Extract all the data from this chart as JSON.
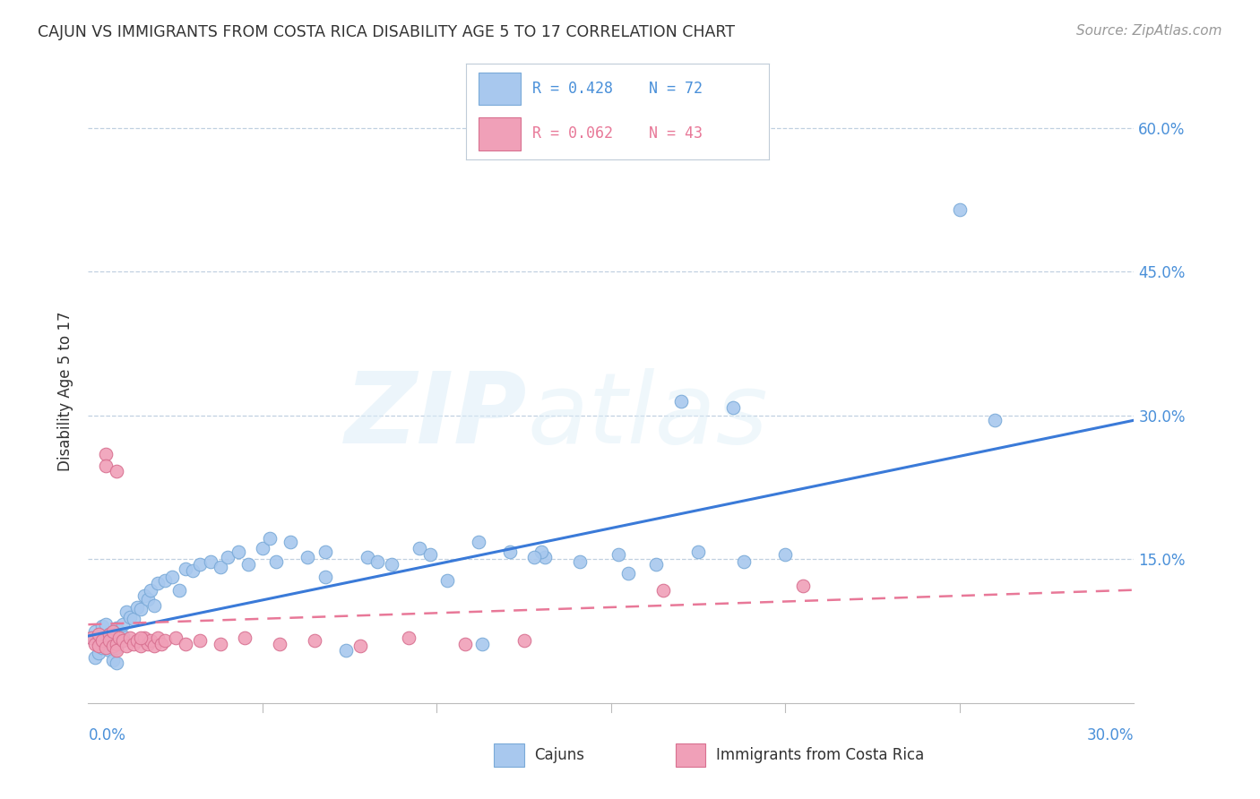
{
  "title": "CAJUN VS IMMIGRANTS FROM COSTA RICA DISABILITY AGE 5 TO 17 CORRELATION CHART",
  "source_text": "Source: ZipAtlas.com",
  "ylabel": "Disability Age 5 to 17",
  "xlim": [
    0.0,
    0.3
  ],
  "ylim": [
    0.0,
    0.65
  ],
  "yticks": [
    0.15,
    0.3,
    0.45,
    0.6
  ],
  "ytick_labels": [
    "15.0%",
    "30.0%",
    "45.0%",
    "60.0%"
  ],
  "cajun_color": "#a8c8ee",
  "cajun_edge_color": "#7aaad8",
  "costa_rica_color": "#f0a0b8",
  "costa_rica_edge_color": "#d87090",
  "trend_cajun_color": "#3a7ad8",
  "trend_costa_rica_color": "#e87898",
  "legend_label_cajun": "Cajuns",
  "legend_label_costa_rica": "Immigrants from Costa Rica",
  "R_cajun": 0.428,
  "N_cajun": 72,
  "R_costa_rica": 0.062,
  "N_costa_rica": 43,
  "background_color": "#ffffff",
  "grid_color": "#c0d0e0",
  "axis_color": "#4a90d9",
  "trend_cajun_start_y": 0.07,
  "trend_cajun_end_y": 0.295,
  "trend_cr_start_y": 0.082,
  "trend_cr_end_y": 0.118,
  "cajun_x": [
    0.001,
    0.002,
    0.002,
    0.003,
    0.003,
    0.004,
    0.004,
    0.005,
    0.005,
    0.006,
    0.006,
    0.007,
    0.007,
    0.008,
    0.008,
    0.008,
    0.009,
    0.009,
    0.01,
    0.01,
    0.011,
    0.012,
    0.013,
    0.014,
    0.015,
    0.016,
    0.017,
    0.018,
    0.019,
    0.02,
    0.022,
    0.024,
    0.026,
    0.028,
    0.03,
    0.032,
    0.035,
    0.038,
    0.04,
    0.043,
    0.046,
    0.05,
    0.054,
    0.058,
    0.063,
    0.068,
    0.074,
    0.08,
    0.087,
    0.095,
    0.103,
    0.112,
    0.121,
    0.131,
    0.141,
    0.152,
    0.163,
    0.175,
    0.188,
    0.2,
    0.13,
    0.155,
    0.17,
    0.185,
    0.052,
    0.068,
    0.083,
    0.098,
    0.113,
    0.128,
    0.25,
    0.26
  ],
  "cajun_y": [
    0.068,
    0.075,
    0.048,
    0.065,
    0.052,
    0.08,
    0.058,
    0.082,
    0.062,
    0.072,
    0.055,
    0.068,
    0.045,
    0.078,
    0.058,
    0.042,
    0.065,
    0.075,
    0.07,
    0.082,
    0.095,
    0.09,
    0.088,
    0.1,
    0.098,
    0.112,
    0.108,
    0.118,
    0.102,
    0.125,
    0.128,
    0.132,
    0.118,
    0.14,
    0.138,
    0.145,
    0.148,
    0.142,
    0.152,
    0.158,
    0.145,
    0.162,
    0.148,
    0.168,
    0.152,
    0.158,
    0.055,
    0.152,
    0.145,
    0.162,
    0.128,
    0.168,
    0.158,
    0.152,
    0.148,
    0.155,
    0.145,
    0.158,
    0.148,
    0.155,
    0.158,
    0.135,
    0.315,
    0.308,
    0.172,
    0.132,
    0.148,
    0.155,
    0.062,
    0.152,
    0.515,
    0.295
  ],
  "costa_rica_x": [
    0.001,
    0.002,
    0.003,
    0.003,
    0.004,
    0.005,
    0.005,
    0.006,
    0.006,
    0.007,
    0.007,
    0.008,
    0.008,
    0.009,
    0.01,
    0.011,
    0.012,
    0.013,
    0.014,
    0.015,
    0.016,
    0.017,
    0.018,
    0.019,
    0.02,
    0.021,
    0.022,
    0.025,
    0.028,
    0.032,
    0.038,
    0.045,
    0.055,
    0.065,
    0.078,
    0.092,
    0.108,
    0.125,
    0.165,
    0.205,
    0.005,
    0.008,
    0.015
  ],
  "costa_rica_y": [
    0.068,
    0.062,
    0.06,
    0.072,
    0.065,
    0.26,
    0.058,
    0.072,
    0.065,
    0.06,
    0.075,
    0.062,
    0.055,
    0.068,
    0.065,
    0.06,
    0.068,
    0.062,
    0.065,
    0.06,
    0.068,
    0.062,
    0.065,
    0.06,
    0.068,
    0.062,
    0.065,
    0.068,
    0.062,
    0.065,
    0.062,
    0.068,
    0.062,
    0.065,
    0.06,
    0.068,
    0.062,
    0.065,
    0.118,
    0.122,
    0.248,
    0.242,
    0.068
  ]
}
